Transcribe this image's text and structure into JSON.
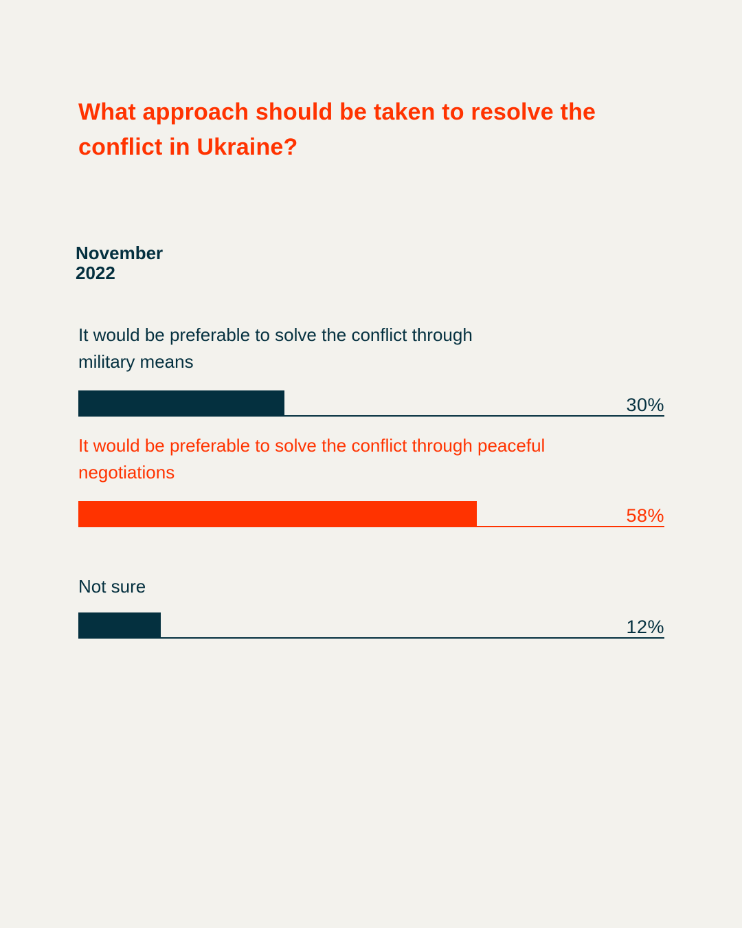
{
  "colors": {
    "background": "#f3f2ed",
    "accent": "#ff3300",
    "dark": "#04303f"
  },
  "chart_data": {
    "type": "bar",
    "orientation": "horizontal",
    "title": "What approach should be taken to resolve the conflict in Ukraine?",
    "period": [
      "November",
      "2022"
    ],
    "categories": [
      "It would be preferable to solve the conflict through military means",
      "It would be preferable to solve the conflict through peaceful negotiations",
      "Not sure"
    ],
    "values": [
      30,
      58,
      12
    ],
    "value_labels": [
      "30%",
      "58%",
      "12%"
    ],
    "highlighted": [
      false,
      true,
      false
    ],
    "xlim": [
      0,
      100
    ],
    "grid": false,
    "legend": "none"
  }
}
